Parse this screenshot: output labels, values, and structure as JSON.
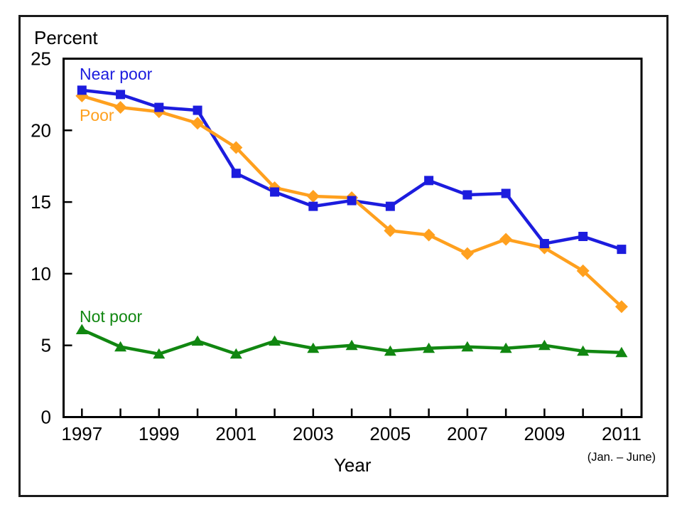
{
  "chart_data": {
    "type": "line",
    "title": "",
    "ylabel": "Percent",
    "xlabel": "Year",
    "x_axis_note": "(Jan. – June)",
    "x": [
      1997,
      1998,
      1999,
      2000,
      2001,
      2002,
      2003,
      2004,
      2005,
      2006,
      2007,
      2008,
      2009,
      2010,
      2011
    ],
    "x_tick_labels": [
      "1997",
      "1999",
      "2001",
      "2003",
      "2005",
      "2007",
      "2009",
      "2011"
    ],
    "x_labeled_years": [
      1997,
      1999,
      2001,
      2003,
      2005,
      2007,
      2009,
      2011
    ],
    "ylim": [
      0,
      25
    ],
    "yticks": [
      0,
      5,
      10,
      15,
      20,
      25
    ],
    "grid": false,
    "legend_position": "inline-labels",
    "series": [
      {
        "name": "Near poor",
        "color": "#1C1CDE",
        "marker": "square",
        "values": [
          22.8,
          22.5,
          21.6,
          21.4,
          17.0,
          15.7,
          14.7,
          15.1,
          14.7,
          16.5,
          15.5,
          15.6,
          12.1,
          12.6,
          11.7
        ]
      },
      {
        "name": "Poor",
        "color": "#FFA01E",
        "marker": "diamond",
        "values": [
          22.4,
          21.6,
          21.3,
          20.5,
          18.8,
          16.0,
          15.4,
          15.3,
          13.0,
          12.7,
          11.4,
          12.4,
          11.8,
          10.2,
          7.7
        ]
      },
      {
        "name": "Not poor",
        "color": "#118711",
        "marker": "triangle",
        "values": [
          6.1,
          4.9,
          4.4,
          5.3,
          4.4,
          5.3,
          4.8,
          5.0,
          4.6,
          4.8,
          4.9,
          4.8,
          5.0,
          4.6,
          4.5
        ]
      }
    ],
    "colors": {
      "axis": "#000000",
      "text": "#000000",
      "frame": "#1a1a1a",
      "background": "#ffffff"
    }
  }
}
